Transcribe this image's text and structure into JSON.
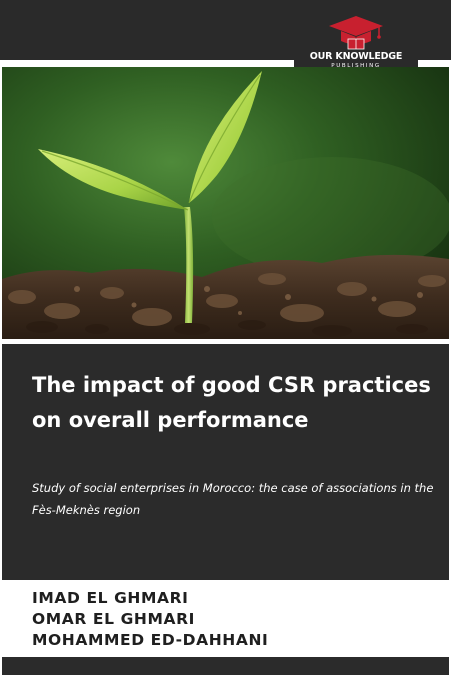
{
  "publisher": {
    "name": "OUR KNOWLEDGE",
    "tagline": "PUBLISHING",
    "logo_icon": "graduation-cap-book-icon",
    "logo_color": "#c8202f"
  },
  "cover": {
    "image": "seedling-sprout-in-soil",
    "title": "The impact of good CSR practices on overall performance",
    "subtitle": "Study of social enterprises in Morocco: the case of associations in the Fès-Meknès region",
    "panel_color": "#2b2b2b"
  },
  "authors": [
    "IMAD EL GHMARI",
    "OMAR EL GHMARI",
    "MOHAMMED ED-DAHHANI"
  ]
}
